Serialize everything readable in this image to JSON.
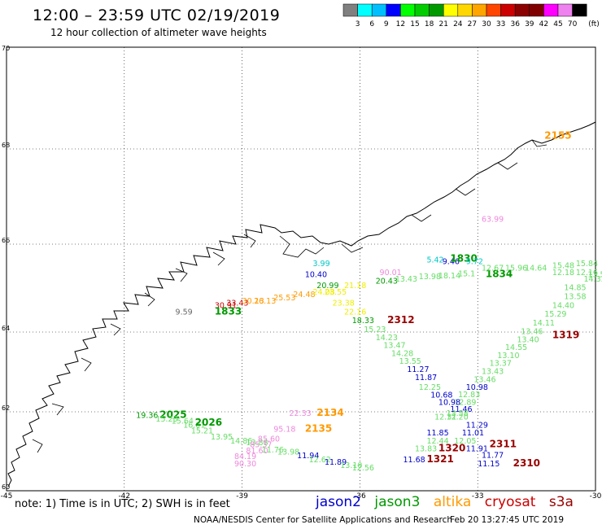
{
  "header": {
    "title": "12:00 – 23:59 UTC 02/19/2019",
    "subtitle": "12 hour collection of altimeter wave heights"
  },
  "colorbar": {
    "colors": [
      "#808080",
      "#00ffff",
      "#00bfff",
      "#0000ff",
      "#00ff00",
      "#00cc00",
      "#009900",
      "#ffff00",
      "#ffd700",
      "#ffa500",
      "#ff4500",
      "#cc0000",
      "#8b0000",
      "#800000",
      "#ff00ff",
      "#ee82ee",
      "#000000"
    ],
    "labels": [
      "3",
      "6",
      "9",
      "12",
      "15",
      "18",
      "21",
      "24",
      "27",
      "30",
      "33",
      "36",
      "39",
      "42",
      "45",
      "70"
    ],
    "unit": "(ft)"
  },
  "axes": {
    "lat_labels": [
      "70",
      "68",
      "66",
      "64",
      "62",
      "60"
    ],
    "lon_labels": [
      "-45",
      "-42",
      "-39",
      "-36",
      "-33",
      "-30"
    ]
  },
  "obs_colors": {
    "jason2": "#0000cc",
    "jason3": "#009900",
    "altika": "#ff9900",
    "cryosat": "#cc0000",
    "s3a": "#990000",
    "cyan": "#00c8c8",
    "green": "#66dd66",
    "yellow": "#eeee00",
    "orange": "#ff9900",
    "pink": "#ee88dd",
    "darkgreen": "#009900",
    "blue": "#0000cc",
    "red": "#cc0000",
    "maroon": "#990000",
    "gray": "#666666"
  },
  "observations": [
    {
      "text": "2155",
      "c": "orange",
      "lon": -31.3,
      "lat": 68.2,
      "bold": true
    },
    {
      "text": "63.99",
      "c": "pink",
      "lon": -32.9,
      "lat": 66.47
    },
    {
      "text": "5.42",
      "c": "cyan",
      "lon": -34.3,
      "lat": 65.58
    },
    {
      "text": "9.46",
      "c": "blue",
      "lon": -33.9,
      "lat": 65.55
    },
    {
      "text": "1830",
      "c": "darkgreen",
      "lon": -33.7,
      "lat": 65.6,
      "bold": true
    },
    {
      "text": "9.72",
      "c": "cyan",
      "lon": -33.3,
      "lat": 65.55
    },
    {
      "text": "10.40",
      "c": "blue",
      "lon": -37.4,
      "lat": 65.25
    },
    {
      "text": "3.99",
      "c": "cyan",
      "lon": -37.2,
      "lat": 65.5
    },
    {
      "text": "90.01",
      "c": "pink",
      "lon": -35.5,
      "lat": 65.3
    },
    {
      "text": "20.99",
      "c": "darkgreen",
      "lon": -37.1,
      "lat": 65.0
    },
    {
      "text": "20.43",
      "c": "darkgreen",
      "lon": -35.6,
      "lat": 65.1
    },
    {
      "text": "13.43",
      "c": "green",
      "lon": -35.1,
      "lat": 65.15
    },
    {
      "text": "13.98",
      "c": "green",
      "lon": -34.5,
      "lat": 65.2
    },
    {
      "text": "18.14",
      "c": "green",
      "lon": -34.0,
      "lat": 65.22
    },
    {
      "text": "15.1",
      "c": "green",
      "lon": -33.5,
      "lat": 65.27
    },
    {
      "text": "1834",
      "c": "darkgreen",
      "lon": -32.8,
      "lat": 65.25,
      "bold": true
    },
    {
      "text": "12.67",
      "c": "green",
      "lon": -32.9,
      "lat": 65.4
    },
    {
      "text": "15.96",
      "c": "green",
      "lon": -32.3,
      "lat": 65.4
    },
    {
      "text": "14.64",
      "c": "green",
      "lon": -31.8,
      "lat": 65.4
    },
    {
      "text": "15.48",
      "c": "green",
      "lon": -31.1,
      "lat": 65.45
    },
    {
      "text": "15.84",
      "c": "green",
      "lon": -30.5,
      "lat": 65.5
    },
    {
      "text": "12.18",
      "c": "green",
      "lon": -31.1,
      "lat": 65.3
    },
    {
      "text": "12.16",
      "c": "green",
      "lon": -30.5,
      "lat": 65.3
    },
    {
      "text": "13.55",
      "c": "green",
      "lon": -30.2,
      "lat": 65.25
    },
    {
      "text": "14.33",
      "c": "green",
      "lon": -30.3,
      "lat": 65.15
    },
    {
      "text": "13.25",
      "c": "green",
      "lon": -29.8,
      "lat": 65.45
    },
    {
      "text": "11.3",
      "c": "blue",
      "lon": -29.8,
      "lat": 65.65
    },
    {
      "text": "14.85",
      "c": "green",
      "lon": -30.8,
      "lat": 64.95
    },
    {
      "text": "13.58",
      "c": "green",
      "lon": -30.8,
      "lat": 64.75
    },
    {
      "text": "14.40",
      "c": "green",
      "lon": -31.1,
      "lat": 64.55
    },
    {
      "text": "15.29",
      "c": "green",
      "lon": -31.3,
      "lat": 64.35
    },
    {
      "text": "14.11",
      "c": "green",
      "lon": -31.6,
      "lat": 64.15
    },
    {
      "text": "13.46",
      "c": "green",
      "lon": -31.9,
      "lat": 63.95
    },
    {
      "text": "13.40",
      "c": "green",
      "lon": -32.0,
      "lat": 63.75
    },
    {
      "text": "1319",
      "c": "maroon",
      "lon": -31.1,
      "lat": 63.85,
      "bold": true
    },
    {
      "text": "14.55",
      "c": "green",
      "lon": -32.3,
      "lat": 63.55
    },
    {
      "text": "13.10",
      "c": "green",
      "lon": -32.5,
      "lat": 63.35
    },
    {
      "text": "13.37",
      "c": "green",
      "lon": -32.7,
      "lat": 63.15
    },
    {
      "text": "13.43",
      "c": "green",
      "lon": -32.9,
      "lat": 62.95
    },
    {
      "text": "13.46",
      "c": "green",
      "lon": -33.1,
      "lat": 62.75
    },
    {
      "text": "10.98",
      "c": "blue",
      "lon": -33.3,
      "lat": 62.55
    },
    {
      "text": "12.83",
      "c": "green",
      "lon": -33.5,
      "lat": 62.37
    },
    {
      "text": "12.89",
      "c": "green",
      "lon": -33.6,
      "lat": 62.17
    },
    {
      "text": "11.46",
      "c": "blue",
      "lon": -33.7,
      "lat": 62.0
    },
    {
      "text": "12.20",
      "c": "green",
      "lon": -33.8,
      "lat": 61.8
    },
    {
      "text": "11.29",
      "c": "blue",
      "lon": -33.3,
      "lat": 61.6
    },
    {
      "text": "11.01",
      "c": "blue",
      "lon": -33.4,
      "lat": 61.4
    },
    {
      "text": "12.05",
      "c": "green",
      "lon": -33.6,
      "lat": 61.2
    },
    {
      "text": "11.91",
      "c": "blue",
      "lon": -33.3,
      "lat": 61.0
    },
    {
      "text": "11.77",
      "c": "blue",
      "lon": -32.9,
      "lat": 60.83
    },
    {
      "text": "11.15",
      "c": "blue",
      "lon": -33.0,
      "lat": 60.62
    },
    {
      "text": "2311",
      "c": "maroon",
      "lon": -32.7,
      "lat": 61.1,
      "bold": true
    },
    {
      "text": "2310",
      "c": "maroon",
      "lon": -32.1,
      "lat": 60.62,
      "bold": true
    },
    {
      "text": "18.33",
      "c": "darkgreen",
      "lon": -36.2,
      "lat": 64.2
    },
    {
      "text": "2312",
      "c": "maroon",
      "lon": -35.3,
      "lat": 64.2,
      "bold": true
    },
    {
      "text": "15.23",
      "c": "green",
      "lon": -35.9,
      "lat": 64.0
    },
    {
      "text": "14.23",
      "c": "green",
      "lon": -35.6,
      "lat": 63.8
    },
    {
      "text": "13.47",
      "c": "green",
      "lon": -35.4,
      "lat": 63.6
    },
    {
      "text": "14.28",
      "c": "green",
      "lon": -35.2,
      "lat": 63.4
    },
    {
      "text": "13.55",
      "c": "green",
      "lon": -35.0,
      "lat": 63.2
    },
    {
      "text": "11.27",
      "c": "blue",
      "lon": -34.8,
      "lat": 63.0
    },
    {
      "text": "11.87",
      "c": "blue",
      "lon": -34.6,
      "lat": 62.8
    },
    {
      "text": "12.25",
      "c": "green",
      "lon": -34.5,
      "lat": 62.55
    },
    {
      "text": "10.68",
      "c": "blue",
      "lon": -34.2,
      "lat": 62.36
    },
    {
      "text": "10.98",
      "c": "blue",
      "lon": -34.0,
      "lat": 62.17
    },
    {
      "text": "13.58",
      "c": "green",
      "lon": -33.8,
      "lat": 61.9
    },
    {
      "text": "12.31",
      "c": "green",
      "lon": -34.1,
      "lat": 61.8
    },
    {
      "text": "11.85",
      "c": "blue",
      "lon": -34.3,
      "lat": 61.4
    },
    {
      "text": "12.44",
      "c": "green",
      "lon": -34.3,
      "lat": 61.2
    },
    {
      "text": "13.83",
      "c": "green",
      "lon": -34.6,
      "lat": 61.0
    },
    {
      "text": "1320",
      "c": "maroon",
      "lon": -34.0,
      "lat": 61.0,
      "bold": true
    },
    {
      "text": "11.68",
      "c": "blue",
      "lon": -34.9,
      "lat": 60.72
    },
    {
      "text": "1321",
      "c": "maroon",
      "lon": -34.3,
      "lat": 60.72,
      "bold": true
    },
    {
      "text": "30.91",
      "c": "red",
      "lon": -39.7,
      "lat": 64.55
    },
    {
      "text": "33.43",
      "c": "red",
      "lon": -39.4,
      "lat": 64.6
    },
    {
      "text": "30.13",
      "c": "orange",
      "lon": -39.0,
      "lat": 64.65
    },
    {
      "text": "26.13",
      "c": "orange",
      "lon": -38.7,
      "lat": 64.65
    },
    {
      "text": "25.53",
      "c": "orange",
      "lon": -38.2,
      "lat": 64.72
    },
    {
      "text": "24.48",
      "c": "orange",
      "lon": -37.7,
      "lat": 64.8
    },
    {
      "text": "24.08",
      "c": "yellow",
      "lon": -37.2,
      "lat": 64.85
    },
    {
      "text": "23.55",
      "c": "yellow",
      "lon": -36.9,
      "lat": 64.85
    },
    {
      "text": "21.18",
      "c": "yellow",
      "lon": -36.4,
      "lat": 65.0
    },
    {
      "text": "23.38",
      "c": "yellow",
      "lon": -36.7,
      "lat": 64.6
    },
    {
      "text": "22.16",
      "c": "yellow",
      "lon": -36.4,
      "lat": 64.4
    },
    {
      "text": "9.59",
      "c": "gray",
      "lon": -40.7,
      "lat": 64.4
    },
    {
      "text": "1833",
      "c": "darkgreen",
      "lon": -39.7,
      "lat": 64.4,
      "bold": true
    },
    {
      "text": "19.36",
      "c": "darkgreen",
      "lon": -41.7,
      "lat": 61.85
    },
    {
      "text": "2025",
      "c": "darkgreen",
      "lon": -41.1,
      "lat": 61.85,
      "bold": true
    },
    {
      "text": "15.23",
      "c": "green",
      "lon": -41.2,
      "lat": 61.75
    },
    {
      "text": "15.64",
      "c": "green",
      "lon": -40.8,
      "lat": 61.7
    },
    {
      "text": "16.01",
      "c": "green",
      "lon": -40.5,
      "lat": 61.6
    },
    {
      "text": "2026",
      "c": "darkgreen",
      "lon": -40.2,
      "lat": 61.65,
      "bold": true
    },
    {
      "text": "15.21",
      "c": "green",
      "lon": -40.3,
      "lat": 61.45
    },
    {
      "text": "13.95",
      "c": "green",
      "lon": -39.8,
      "lat": 61.3
    },
    {
      "text": "14.86",
      "c": "green",
      "lon": -39.3,
      "lat": 61.2
    },
    {
      "text": "13.88",
      "c": "green",
      "lon": -38.9,
      "lat": 61.15
    },
    {
      "text": "22.33",
      "c": "pink",
      "lon": -37.8,
      "lat": 61.9
    },
    {
      "text": "2134",
      "c": "orange",
      "lon": -37.1,
      "lat": 61.9,
      "bold": true
    },
    {
      "text": "95.18",
      "c": "pink",
      "lon": -38.2,
      "lat": 61.5
    },
    {
      "text": "2135",
      "c": "orange",
      "lon": -37.4,
      "lat": 61.5,
      "bold": true
    },
    {
      "text": "85.60",
      "c": "pink",
      "lon": -38.6,
      "lat": 61.25
    },
    {
      "text": "85.37",
      "c": "pink",
      "lon": -38.8,
      "lat": 61.1
    },
    {
      "text": "81.60",
      "c": "pink",
      "lon": -38.9,
      "lat": 60.95
    },
    {
      "text": "84.19",
      "c": "pink",
      "lon": -39.2,
      "lat": 60.8
    },
    {
      "text": "90.30",
      "c": "pink",
      "lon": -39.2,
      "lat": 60.62
    },
    {
      "text": "11.76",
      "c": "green",
      "lon": -38.5,
      "lat": 60.97
    },
    {
      "text": "13.98",
      "c": "green",
      "lon": -38.1,
      "lat": 60.92
    },
    {
      "text": "11.94",
      "c": "blue",
      "lon": -37.6,
      "lat": 60.82
    },
    {
      "text": "12.62",
      "c": "green",
      "lon": -37.3,
      "lat": 60.72
    },
    {
      "text": "11.89",
      "c": "blue",
      "lon": -36.9,
      "lat": 60.66
    },
    {
      "text": "13.10",
      "c": "green",
      "lon": -36.5,
      "lat": 60.58
    },
    {
      "text": "12.56",
      "c": "green",
      "lon": -36.2,
      "lat": 60.52
    }
  ],
  "footer": {
    "note": "note:  1) Time is in UTC;  2) SWH is in feet",
    "legend": [
      {
        "label": "jason2",
        "c": "jason2"
      },
      {
        "label": "jason3",
        "c": "jason3"
      },
      {
        "label": "altika",
        "c": "altika"
      },
      {
        "label": "cryosat",
        "c": "cryosat"
      },
      {
        "label": "s3a",
        "c": "s3a"
      }
    ],
    "credit": "NOAA/NESDIS Center for Satellite Applications and Research",
    "timestamp": "Feb 20 13:27:45 UTC 2019"
  }
}
